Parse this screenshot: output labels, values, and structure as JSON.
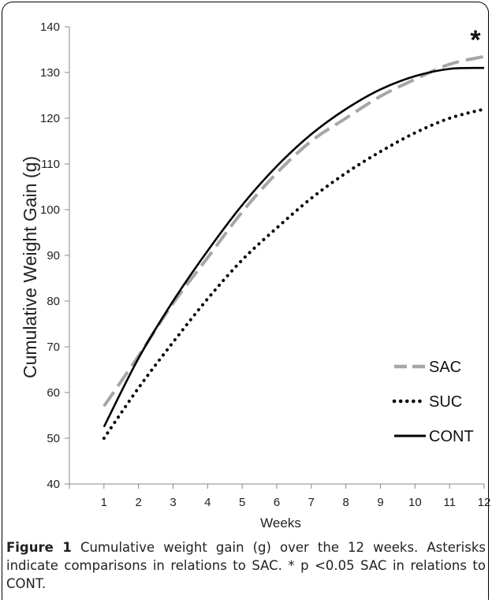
{
  "chart_data": {
    "type": "line",
    "title": "",
    "xlabel": "Weeks",
    "ylabel": "Cumulative Weight Gain (g)",
    "x": [
      1,
      2,
      3,
      4,
      5,
      6,
      7,
      8,
      9,
      10,
      11,
      12
    ],
    "xlim": [
      0,
      12
    ],
    "ylim": [
      40,
      140
    ],
    "yticks": [
      40,
      50,
      60,
      70,
      80,
      90,
      100,
      110,
      120,
      130,
      140
    ],
    "grid": false,
    "legend_position": "bottom-right",
    "annotation": "*",
    "series": [
      {
        "name": "SAC",
        "style": "dashed",
        "color": "#a6a6a6",
        "values": [
          57,
          68,
          79.5,
          89.5,
          99.5,
          108,
          115,
          120,
          124.8,
          128.5,
          131.8,
          133.5
        ]
      },
      {
        "name": "SUC",
        "style": "dotted",
        "color": "#000000",
        "values": [
          50,
          61,
          71,
          80.5,
          89,
          96,
          102.5,
          108,
          112.7,
          116.8,
          120,
          122
        ]
      },
      {
        "name": "CONT",
        "style": "solid",
        "color": "#000000",
        "values": [
          52.5,
          67.5,
          80,
          91,
          101,
          109.5,
          116.5,
          122,
          126.3,
          129.2,
          130.8,
          131
        ]
      }
    ]
  },
  "caption": {
    "label": "Figure 1",
    "text": " Cumulative weight gain (g) over the 12 weeks. Asterisks indicate comparisons in relations to SAC. * p <0.05 SAC in relations to CONT."
  }
}
